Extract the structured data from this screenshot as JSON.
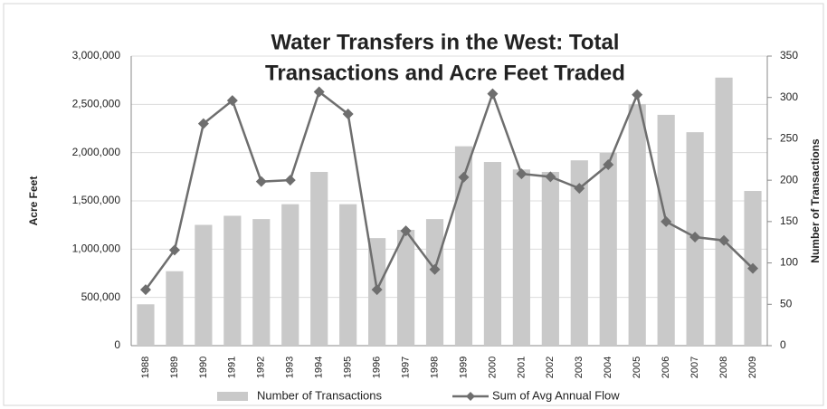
{
  "chart_data": {
    "type": "bar-line",
    "title": [
      "Water Transfers in the West: Total",
      "Transactions and Acre Feet Traded"
    ],
    "y_label": "Acre Feet",
    "y2_label": "Number of Transactions",
    "categories": [
      "1988",
      "1989",
      "1990",
      "1991",
      "1992",
      "1993",
      "1994",
      "1995",
      "1996",
      "1997",
      "1998",
      "1999",
      "2000",
      "2001",
      "2002",
      "2003",
      "2004",
      "2005",
      "2006",
      "2007",
      "2008",
      "2009"
    ],
    "series": [
      {
        "name": "Number of Transactions",
        "type": "bar",
        "axis": "y2",
        "color": "#c9c9c9",
        "values": [
          50,
          90,
          146,
          157,
          153,
          171,
          210,
          171,
          130,
          140,
          153,
          241,
          222,
          213,
          210,
          224,
          233,
          292,
          279,
          258,
          324,
          187
        ]
      },
      {
        "name": "Sum of Avg Annual Flow",
        "type": "line",
        "axis": "y",
        "color": "#6e6e6e",
        "values": [
          580000,
          990000,
          2300000,
          2540000,
          1700000,
          1715000,
          2630000,
          2400000,
          580000,
          1190000,
          790000,
          1745000,
          2610000,
          1780000,
          1750000,
          1630000,
          1875000,
          2600000,
          1285000,
          1125000,
          1090000,
          800000
        ]
      }
    ],
    "ylim": [
      0,
      3000000
    ],
    "yticks": [
      0,
      {
        "value": 500000,
        "label": "500,000"
      },
      {
        "value": 1000000,
        "label": "1,000,000"
      },
      {
        "value": 1500000,
        "label": "1,500,000"
      },
      {
        "value": 2000000,
        "label": "2,000,000"
      },
      {
        "value": 2500000,
        "label": "2,500,000"
      },
      {
        "value": 3000000,
        "label": "3,000,000"
      }
    ],
    "y2lim": [
      0,
      350
    ],
    "y2ticks": [
      0,
      50,
      100,
      150,
      200,
      250,
      300,
      350
    ]
  }
}
